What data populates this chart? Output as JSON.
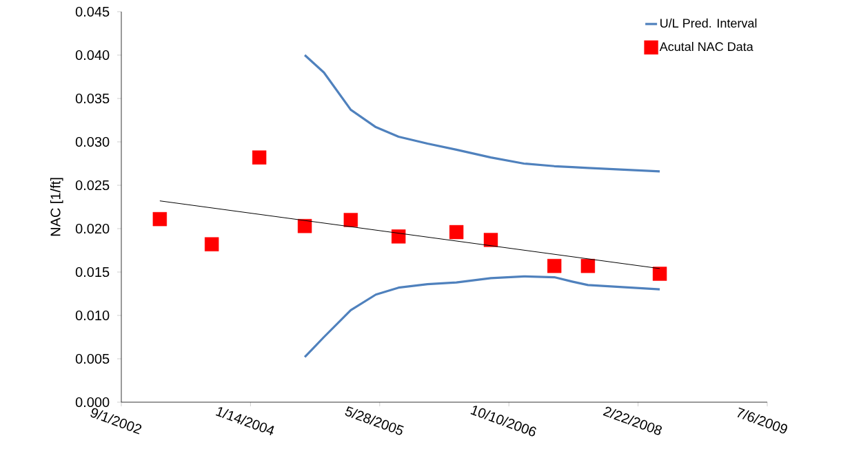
{
  "chart_data": {
    "type": "scatter",
    "ylabel": "NAC [1/ft]",
    "xlim": [
      "2002-09-01",
      "2009-07-06"
    ],
    "xticks": [
      {
        "value": "2002-09-01",
        "label": "9/1/2002"
      },
      {
        "value": "2004-01-14",
        "label": "1/14/2004"
      },
      {
        "value": "2005-05-28",
        "label": "5/28/2005"
      },
      {
        "value": "2006-10-10",
        "label": "10/10/2006"
      },
      {
        "value": "2008-02-22",
        "label": "2/22/2008"
      },
      {
        "value": "2009-07-06",
        "label": "7/6/2009"
      }
    ],
    "ylim": [
      0,
      0.045
    ],
    "yticks": [
      {
        "value": 0,
        "label": "0.000"
      },
      {
        "value": 0.005,
        "label": "0.005"
      },
      {
        "value": 0.01,
        "label": "0.010"
      },
      {
        "value": 0.015,
        "label": "0.015"
      },
      {
        "value": 0.02,
        "label": "0.020"
      },
      {
        "value": 0.025,
        "label": "0.025"
      },
      {
        "value": 0.03,
        "label": "0.030"
      },
      {
        "value": 0.035,
        "label": "0.035"
      },
      {
        "value": 0.04,
        "label": "0.040"
      },
      {
        "value": 0.045,
        "label": "0.045"
      }
    ],
    "legend": "top right",
    "series": [
      {
        "name": "U/L Pred. Interval",
        "type": "line",
        "color": "#4f81bd",
        "marker": "none",
        "x": [
          "2004-08-11",
          "2004-10-24",
          "2005-02-05",
          "2005-05-13",
          "2005-08-09",
          "2005-11-29",
          "2006-03-21",
          "2006-08-01",
          "2006-12-07",
          "2007-04-04",
          "2007-06-12",
          "2007-08-12",
          "2008-05-16"
        ],
        "values": [
          0.04,
          0.038,
          0.0337,
          0.0317,
          0.0306,
          0.0298,
          0.0291,
          0.0282,
          0.0275,
          0.0272,
          0.0271,
          0.027,
          0.0266
        ]
      },
      {
        "type": "line",
        "color": "#4f81bd",
        "marker": "none",
        "x": [
          "2004-08-11",
          "2004-10-24",
          "2005-02-05",
          "2005-05-13",
          "2005-08-09",
          "2005-11-29",
          "2006-03-21",
          "2006-08-01",
          "2006-12-07",
          "2007-04-04",
          "2007-06-12",
          "2007-08-12",
          "2008-05-16"
        ],
        "values": [
          0.0052,
          0.0075,
          0.0106,
          0.0124,
          0.0132,
          0.0136,
          0.0138,
          0.0143,
          0.0145,
          0.0144,
          0.0139,
          0.0135,
          0.013
        ]
      },
      {
        "name": "Acutal NAC Data",
        "color": "#ff0000",
        "marker": "square",
        "x": [
          "2003-01-28",
          "2003-08-17",
          "2004-02-17",
          "2004-08-11",
          "2005-02-05",
          "2005-08-09",
          "2006-03-21",
          "2006-08-01",
          "2007-04-04",
          "2007-08-12",
          "2008-05-16"
        ],
        "values": [
          0.0211,
          0.0182,
          0.0282,
          0.0203,
          0.021,
          0.0191,
          0.0196,
          0.0187,
          0.0157,
          0.0157,
          0.0148
        ]
      },
      {
        "type": "line",
        "color": "#000000",
        "marker": "none",
        "x": [
          "2003-01-28",
          "2008-05-16"
        ],
        "values": [
          0.0232,
          0.0154
        ]
      }
    ]
  }
}
